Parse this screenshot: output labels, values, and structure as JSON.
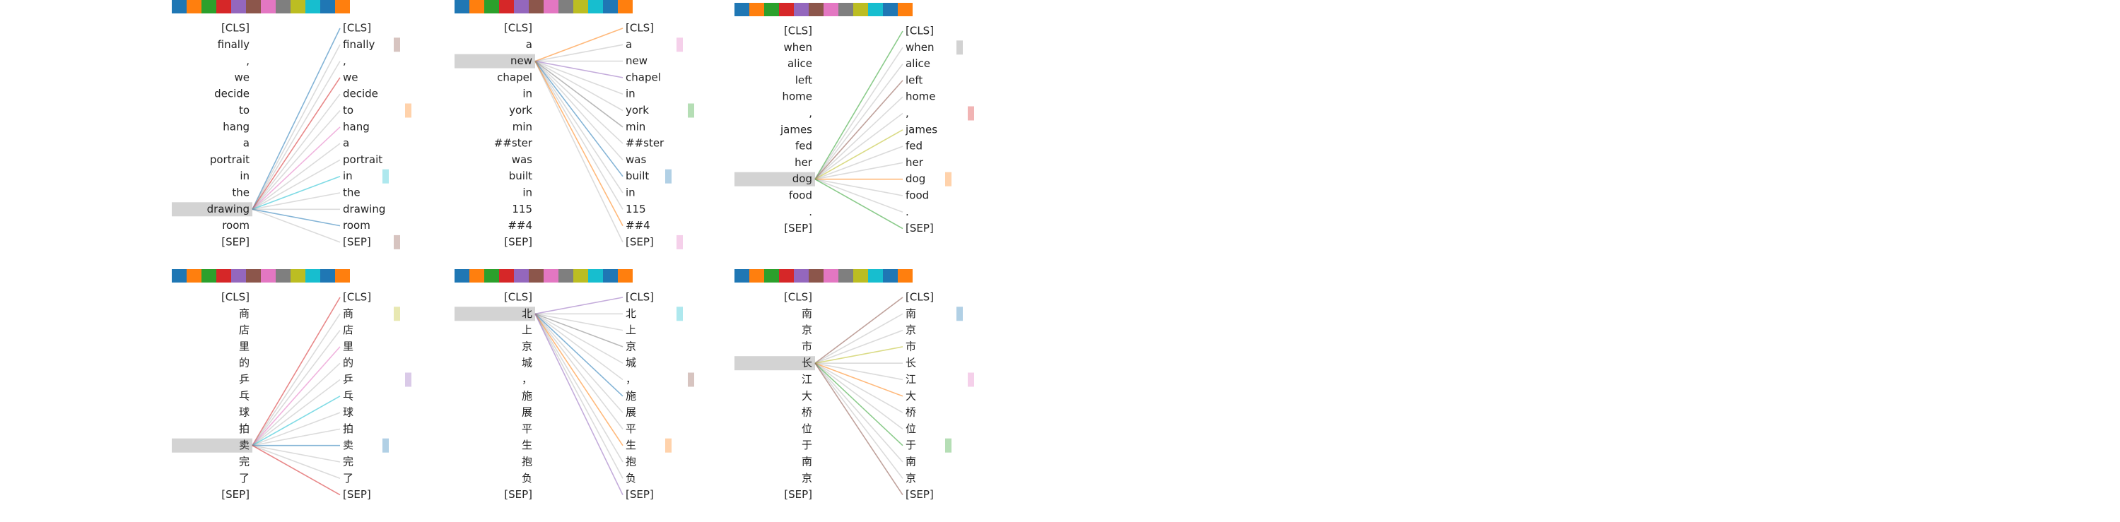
{
  "head_colors": [
    "#1f77b4",
    "#ff7f0e",
    "#2ca02c",
    "#d62728",
    "#9467bd",
    "#8c564b",
    "#e377c2",
    "#7f7f7f",
    "#bcbd22",
    "#17becf",
    "#1f77b4",
    "#ff7f0e"
  ],
  "panels": [
    {
      "tokens": [
        "[CLS]",
        "finally",
        ",",
        "we",
        "decide",
        "to",
        "hang",
        "a",
        "portrait",
        "in",
        "the",
        "drawing",
        "room",
        "[SEP]"
      ],
      "selected": 11
    },
    {
      "tokens": [
        "[CLS]",
        "a",
        "new",
        "chapel",
        "in",
        "york",
        "min",
        "##ster",
        "was",
        "built",
        "in",
        "115",
        "##4",
        "[SEP]"
      ],
      "selected": 2
    },
    {
      "tokens": [
        "[CLS]",
        "when",
        "alice",
        "left",
        "home",
        ",",
        "james",
        "fed",
        "her",
        "dog",
        "food",
        ".",
        "[SEP]"
      ],
      "selected": 9
    },
    {
      "tokens": [
        "[CLS]",
        "商",
        "店",
        "里",
        "的",
        "乒",
        "乓",
        "球",
        "拍",
        "卖",
        "完",
        "了",
        "[SEP]"
      ],
      "selected": 9
    },
    {
      "tokens": [
        "[CLS]",
        "北",
        "上",
        "京",
        "城",
        "，",
        "施",
        "展",
        "平",
        "生",
        "抱",
        "负",
        "[SEP]"
      ],
      "selected": 1
    },
    {
      "tokens": [
        "[CLS]",
        "南",
        "京",
        "市",
        "长",
        "江",
        "大",
        "桥",
        "位",
        "于",
        "南",
        "京",
        "[SEP]"
      ],
      "selected": 4
    }
  ]
}
